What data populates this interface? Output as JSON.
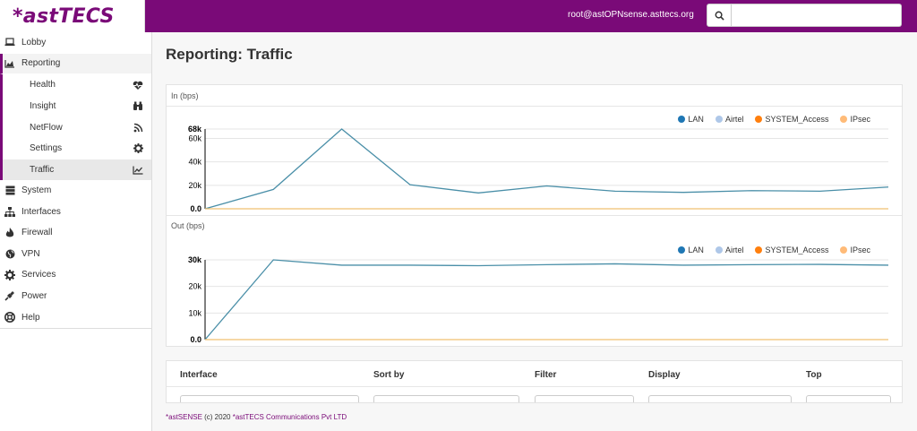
{
  "header": {
    "logo": "*astTECS",
    "user_email": "root@astOPNsense.asttecs.org",
    "search_placeholder": "",
    "search_icon": "search-icon",
    "brand_color": "#7a0a78"
  },
  "sidebar": {
    "items": [
      {
        "label": "Lobby",
        "icon": "laptop-icon"
      },
      {
        "label": "Reporting",
        "icon": "area-chart-icon",
        "open": true,
        "children": [
          {
            "label": "Health",
            "icon": "heartbeat-icon"
          },
          {
            "label": "Insight",
            "icon": "binoculars-icon"
          },
          {
            "label": "NetFlow",
            "icon": "rss-icon"
          },
          {
            "label": "Settings",
            "icon": "cog-icon"
          },
          {
            "label": "Traffic",
            "icon": "line-chart-icon",
            "active": true
          }
        ]
      },
      {
        "label": "System",
        "icon": "server-icon"
      },
      {
        "label": "Interfaces",
        "icon": "sitemap-icon"
      },
      {
        "label": "Firewall",
        "icon": "fire-icon"
      },
      {
        "label": "VPN",
        "icon": "globe-icon"
      },
      {
        "label": "Services",
        "icon": "cogs-icon"
      },
      {
        "label": "Power",
        "icon": "plug-icon"
      },
      {
        "label": "Help",
        "icon": "life-ring-icon"
      }
    ]
  },
  "main": {
    "title": "Reporting: Traffic",
    "in_label": "In (bps)",
    "out_label": "Out (bps)"
  },
  "legend": [
    {
      "name": "LAN",
      "color": "#1f77b4"
    },
    {
      "name": "Airtel",
      "color": "#aec7e8"
    },
    {
      "name": "SYSTEM_Access",
      "color": "#ff7f0e"
    },
    {
      "name": "IPsec",
      "color": "#ffbb78"
    }
  ],
  "chart_data": [
    {
      "type": "line",
      "title": "In (bps)",
      "y_ticks": [
        "0.0",
        "20k",
        "40k",
        "60k",
        "68k"
      ],
      "ylim": [
        0,
        68000
      ],
      "grid": true,
      "legend_position": "top-right",
      "x": [
        0,
        1,
        2,
        3,
        4,
        5,
        6,
        7,
        8,
        9,
        10
      ],
      "series": [
        {
          "name": "LAN",
          "color": "#4a8fa8",
          "values": [
            0,
            16500,
            68000,
            20500,
            13500,
            19500,
            15000,
            14000,
            15500,
            15000,
            18500
          ]
        },
        {
          "name": "SYSTEM_Access",
          "color": "#f0c070",
          "values": [
            0,
            0,
            0,
            0,
            0,
            0,
            0,
            0,
            0,
            0,
            0
          ]
        }
      ]
    },
    {
      "type": "line",
      "title": "Out (bps)",
      "y_ticks": [
        "0.0",
        "10k",
        "20k",
        "30k"
      ],
      "ylim": [
        0,
        30000
      ],
      "grid": true,
      "legend_position": "top-right",
      "x": [
        0,
        1,
        2,
        3,
        4,
        5,
        6,
        7,
        8,
        9,
        10
      ],
      "series": [
        {
          "name": "LAN",
          "color": "#4a8fa8",
          "values": [
            0,
            30000,
            28000,
            28000,
            27800,
            28200,
            28500,
            28000,
            28200,
            28300,
            28000
          ]
        },
        {
          "name": "SYSTEM_Access",
          "color": "#f0c070",
          "values": [
            0,
            0,
            0,
            0,
            0,
            0,
            0,
            0,
            0,
            0,
            0
          ]
        }
      ]
    }
  ],
  "filters": {
    "headers": [
      "Interface",
      "Sort by",
      "Filter",
      "Display",
      "Top"
    ]
  },
  "footer": {
    "brand": "*astSENSE",
    "copyright": " (c) 2020 ",
    "company": "*astTECS Communications Pvt LTD"
  }
}
